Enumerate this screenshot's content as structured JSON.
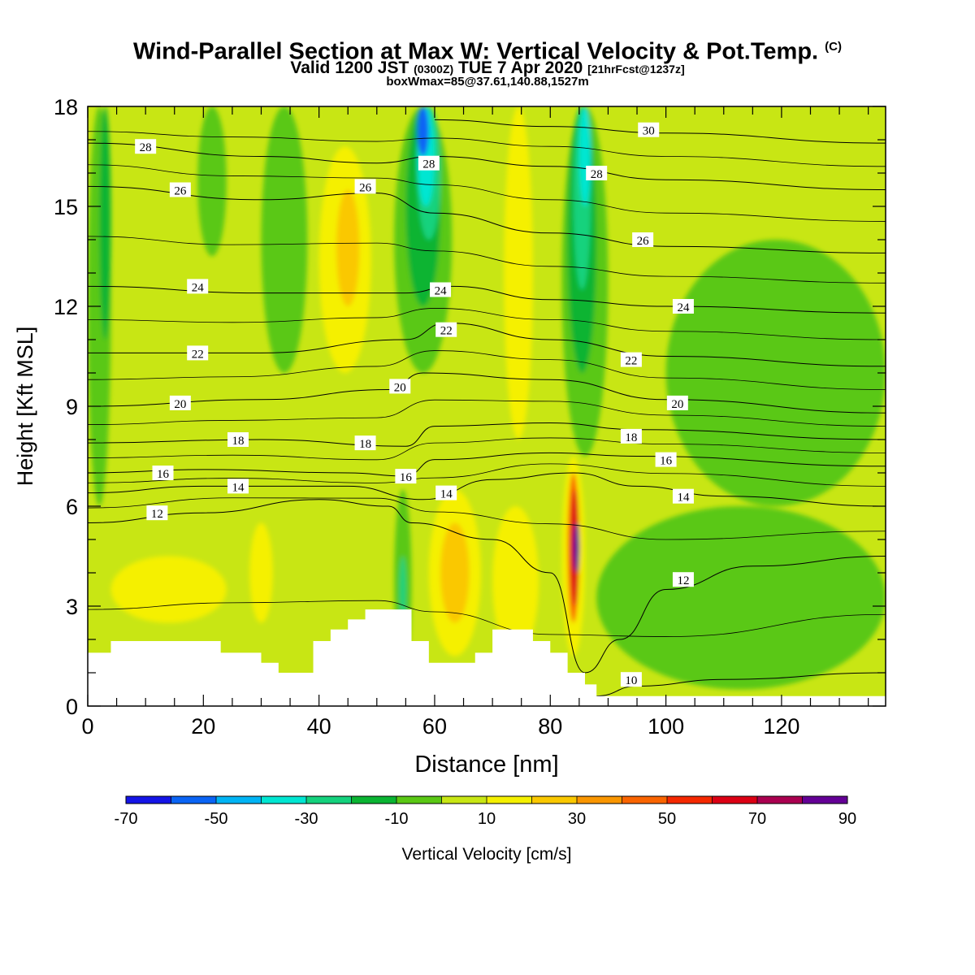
{
  "header": {
    "title": "Wind-Parallel Section at Max W: Vertical Velocity & Pot.Temp.",
    "title_mark": "(C)",
    "valid_prefix": "Valid 1200 JST",
    "valid_utc": "(0300Z)",
    "valid_date": "TUE 7 Apr 2020",
    "forecast": "[21hrFcst@1237z]",
    "box_info": "boxWmax=85@37.61,140.88,1527m"
  },
  "chart_data": {
    "type": "heatmap",
    "xlabel": "Distance [nm]",
    "ylabel": "Height [Kft MSL]",
    "xlim": [
      0,
      138
    ],
    "ylim": [
      0,
      18
    ],
    "x_ticks": [
      0,
      20,
      40,
      60,
      80,
      100,
      120
    ],
    "y_ticks": [
      0,
      3,
      6,
      9,
      12,
      15,
      18
    ],
    "grid": false,
    "colorbar": {
      "label": "Vertical Velocity [cm/s]",
      "tick_labels": [
        "-70",
        "-50",
        "-30",
        "-10",
        "10",
        "30",
        "50",
        "70",
        "90"
      ],
      "levels": [
        -70,
        -60,
        -50,
        -40,
        -30,
        -20,
        -10,
        0,
        10,
        20,
        30,
        40,
        50,
        60,
        70,
        80,
        90
      ],
      "colors": [
        "#1414e6",
        "#0a64f5",
        "#00b4f5",
        "#00e6d2",
        "#14d27d",
        "#0ab432",
        "#5ac814",
        "#c8e614",
        "#f5f000",
        "#fac800",
        "#fa9600",
        "#fa6400",
        "#f52800",
        "#dc0014",
        "#aa0050",
        "#640096"
      ]
    },
    "background_color": "#c8e614",
    "velocity_features": [
      {
        "x": [
          0,
          4
        ],
        "y": [
          6.0,
          18
        ],
        "value": -10
      },
      {
        "x": [
          2,
          4
        ],
        "y": [
          11.0,
          18
        ],
        "value": -20
      },
      {
        "x": [
          19,
          24
        ],
        "y": [
          13.5,
          18
        ],
        "value": -10
      },
      {
        "x": [
          30,
          38
        ],
        "y": [
          10.0,
          18
        ],
        "value": -10
      },
      {
        "x": [
          40,
          49
        ],
        "y": [
          10.0,
          16.8
        ],
        "value": 10
      },
      {
        "x": [
          43,
          47
        ],
        "y": [
          12.0,
          15.5
        ],
        "value": 20
      },
      {
        "x": [
          53,
          63
        ],
        "y": [
          10.0,
          18
        ],
        "value": -10
      },
      {
        "x": [
          55,
          61
        ],
        "y": [
          12.0,
          18
        ],
        "value": -20
      },
      {
        "x": [
          57,
          61
        ],
        "y": [
          14.0,
          18
        ],
        "value": -30
      },
      {
        "x": [
          57,
          60
        ],
        "y": [
          15.0,
          18
        ],
        "value": -40
      },
      {
        "x": [
          57,
          59
        ],
        "y": [
          16.5,
          18
        ],
        "value": -60
      },
      {
        "x": [
          72,
          77
        ],
        "y": [
          8.0,
          18
        ],
        "value": 10
      },
      {
        "x": [
          82,
          90
        ],
        "y": [
          7.5,
          18
        ],
        "value": -10
      },
      {
        "x": [
          83,
          88
        ],
        "y": [
          10.0,
          18
        ],
        "value": -20
      },
      {
        "x": [
          84,
          87
        ],
        "y": [
          12.5,
          18
        ],
        "value": -30
      },
      {
        "x": [
          85,
          87
        ],
        "y": [
          15.0,
          18
        ],
        "value": -40
      },
      {
        "x": [
          53,
          56
        ],
        "y": [
          1.0,
          6.5
        ],
        "value": -10
      },
      {
        "x": [
          54,
          55
        ],
        "y": [
          2.5,
          4.5
        ],
        "value": -30
      },
      {
        "x": [
          59,
          68
        ],
        "y": [
          1.5,
          6.5
        ],
        "value": 10
      },
      {
        "x": [
          61,
          66
        ],
        "y": [
          2.5,
          5.5
        ],
        "value": 20
      },
      {
        "x": [
          82,
          86
        ],
        "y": [
          1.5,
          7.5
        ],
        "value": 10
      },
      {
        "x": [
          83,
          85
        ],
        "y": [
          2.5,
          7.0
        ],
        "value": 40
      },
      {
        "x": [
          83.5,
          85
        ],
        "y": [
          3.0,
          6.5
        ],
        "value": 60
      },
      {
        "x": [
          84,
          85
        ],
        "y": [
          4.0,
          5.5
        ],
        "value": 80
      },
      {
        "x": [
          4,
          24
        ],
        "y": [
          2.5,
          4.5
        ],
        "value": 10
      },
      {
        "x": [
          28,
          32
        ],
        "y": [
          2.5,
          5.5
        ],
        "value": 10
      },
      {
        "x": [
          70,
          78
        ],
        "y": [
          1.5,
          6.0
        ],
        "value": 10
      },
      {
        "x": [
          88,
          138
        ],
        "y": [
          0.5,
          6.0
        ],
        "value": -10
      },
      {
        "x": [
          100,
          138
        ],
        "y": [
          6.0,
          14.0
        ],
        "value": -10
      }
    ],
    "terrain_kft": [
      1.6,
      1.6,
      1.6,
      1.6,
      1.95,
      1.95,
      1.95,
      1.95,
      1.95,
      1.95,
      1.95,
      1.95,
      1.95,
      1.95,
      1.95,
      1.95,
      1.95,
      1.95,
      1.95,
      1.95,
      1.95,
      1.95,
      1.95,
      1.6,
      1.6,
      1.6,
      1.6,
      1.6,
      1.6,
      1.6,
      1.3,
      1.3,
      1.3,
      1.0,
      1.0,
      1.0,
      1.0,
      1.0,
      1.0,
      1.95,
      1.95,
      1.95,
      2.3,
      2.3,
      2.3,
      2.6,
      2.6,
      2.6,
      2.9,
      2.9,
      2.9,
      2.9,
      2.9,
      2.9,
      2.9,
      2.9,
      1.95,
      1.95,
      1.95,
      1.3,
      1.3,
      1.3,
      1.3,
      1.3,
      1.3,
      1.3,
      1.3,
      1.6,
      1.6,
      1.6,
      2.3,
      2.3,
      2.3,
      2.3,
      2.3,
      2.3,
      2.3,
      1.95,
      1.95,
      1.95,
      1.6,
      1.6,
      1.6,
      1.0,
      1.0,
      1.0,
      0.65,
      0.65,
      0.3,
      0.3,
      0.3,
      0.3,
      0.3,
      0.3,
      0.3,
      0.3,
      0.3,
      0.3,
      0.3,
      0.3,
      0.3,
      0.3,
      0.3,
      0.3,
      0.3,
      0.3,
      0.3,
      0.3,
      0.3,
      0.3,
      0.3,
      0.3,
      0.3,
      0.3,
      0.3,
      0.3,
      0.3,
      0.3,
      0.3,
      0.3,
      0.3,
      0.3,
      0.3,
      0.3,
      0.3,
      0.3,
      0.3,
      0.3,
      0.3,
      0.3,
      0.3,
      0.3,
      0.3,
      0.3,
      0.3,
      0.3,
      0.3,
      0.3,
      0.3
    ],
    "theta_contours": [
      {
        "label": "10",
        "points": [
          [
            88,
            0.3
          ],
          [
            95,
            0.6
          ],
          [
            110,
            0.8
          ],
          [
            138,
            1.0
          ]
        ],
        "label_at": [
          94,
          0.8
        ]
      },
      {
        "label": "12",
        "points": [
          [
            0,
            5.5
          ],
          [
            20,
            5.8
          ],
          [
            40,
            6.2
          ],
          [
            52,
            6.0
          ],
          [
            56,
            5.5
          ],
          [
            70,
            5.0
          ],
          [
            80,
            4.0
          ],
          [
            86,
            1.0
          ],
          [
            92,
            2.0
          ],
          [
            100,
            3.5
          ],
          [
            115,
            4.2
          ],
          [
            138,
            4.5
          ]
        ],
        "label_at": [
          12,
          5.8
        ],
        "label2_at": [
          103,
          3.8
        ]
      },
      {
        "label": "14",
        "points": [
          [
            0,
            6.4
          ],
          [
            20,
            6.6
          ],
          [
            45,
            6.6
          ],
          [
            58,
            6.2
          ],
          [
            70,
            6.8
          ],
          [
            84,
            7.0
          ],
          [
            95,
            6.6
          ],
          [
            110,
            6.3
          ],
          [
            138,
            6.0
          ]
        ],
        "label_at": [
          26,
          6.6
        ],
        "label2_at": [
          103,
          6.3
        ]
      },
      {
        "label": "16",
        "points": [
          [
            0,
            7.0
          ],
          [
            20,
            7.1
          ],
          [
            45,
            7.0
          ],
          [
            55,
            6.9
          ],
          [
            60,
            7.4
          ],
          [
            80,
            7.6
          ],
          [
            95,
            7.5
          ],
          [
            138,
            7.2
          ]
        ],
        "label_at": [
          13,
          7.0
        ],
        "label2_at": [
          100,
          7.4
        ]
      },
      {
        "label": "18",
        "points": [
          [
            0,
            7.9
          ],
          [
            30,
            8.0
          ],
          [
            55,
            7.8
          ],
          [
            60,
            8.4
          ],
          [
            80,
            8.5
          ],
          [
            95,
            8.3
          ],
          [
            138,
            8.0
          ]
        ],
        "label_at": [
          26,
          8.0
        ],
        "label2_at": [
          94,
          8.1
        ]
      },
      {
        "label": "20",
        "points": [
          [
            0,
            9.0
          ],
          [
            30,
            9.2
          ],
          [
            52,
            9.5
          ],
          [
            58,
            10.0
          ],
          [
            80,
            9.8
          ],
          [
            100,
            9.2
          ],
          [
            138,
            8.8
          ]
        ],
        "label_at": [
          16,
          9.1
        ],
        "label2_at": [
          102,
          9.1
        ]
      },
      {
        "label": "22",
        "points": [
          [
            0,
            10.6
          ],
          [
            30,
            10.6
          ],
          [
            55,
            11.0
          ],
          [
            62,
            11.5
          ],
          [
            80,
            11.0
          ],
          [
            100,
            10.5
          ],
          [
            138,
            10.2
          ]
        ],
        "label_at": [
          19,
          10.6
        ],
        "label2_at": [
          94,
          10.4
        ]
      },
      {
        "label": "24",
        "points": [
          [
            0,
            12.6
          ],
          [
            30,
            12.4
          ],
          [
            55,
            12.4
          ],
          [
            63,
            12.6
          ],
          [
            80,
            12.2
          ],
          [
            100,
            12.0
          ],
          [
            138,
            11.8
          ]
        ],
        "label_at": [
          19,
          12.6
        ],
        "label2_at": [
          103,
          12.0
        ]
      },
      {
        "label": "26",
        "points": [
          [
            0,
            15.6
          ],
          [
            30,
            15.2
          ],
          [
            50,
            15.4
          ],
          [
            60,
            14.8
          ],
          [
            80,
            14.2
          ],
          [
            100,
            13.8
          ],
          [
            138,
            13.6
          ]
        ],
        "label_at": [
          16,
          15.5
        ],
        "label2_at": [
          96,
          14.0
        ]
      },
      {
        "label": "28",
        "points": [
          [
            0,
            16.9
          ],
          [
            30,
            16.5
          ],
          [
            50,
            16.3
          ],
          [
            60,
            16.5
          ],
          [
            80,
            16.2
          ],
          [
            100,
            15.8
          ],
          [
            138,
            15.5
          ]
        ],
        "label_at": [
          10,
          16.8
        ],
        "label2_at": [
          88,
          16.0
        ]
      },
      {
        "label": "30",
        "points": [
          [
            60,
            17.6
          ],
          [
            80,
            17.4
          ],
          [
            100,
            17.2
          ],
          [
            138,
            16.9
          ]
        ],
        "label_at": [
          97,
          17.3
        ]
      }
    ],
    "extra_labels": [
      {
        "text": "26",
        "at": [
          48,
          15.6
        ]
      },
      {
        "text": "28",
        "at": [
          59,
          16.3
        ]
      },
      {
        "text": "24",
        "at": [
          61,
          12.5
        ]
      },
      {
        "text": "22",
        "at": [
          62,
          11.3
        ]
      },
      {
        "text": "20",
        "at": [
          54,
          9.6
        ]
      },
      {
        "text": "18",
        "at": [
          48,
          7.9
        ]
      },
      {
        "text": "16",
        "at": [
          55,
          6.9
        ]
      },
      {
        "text": "14",
        "at": [
          62,
          6.4
        ]
      }
    ]
  }
}
